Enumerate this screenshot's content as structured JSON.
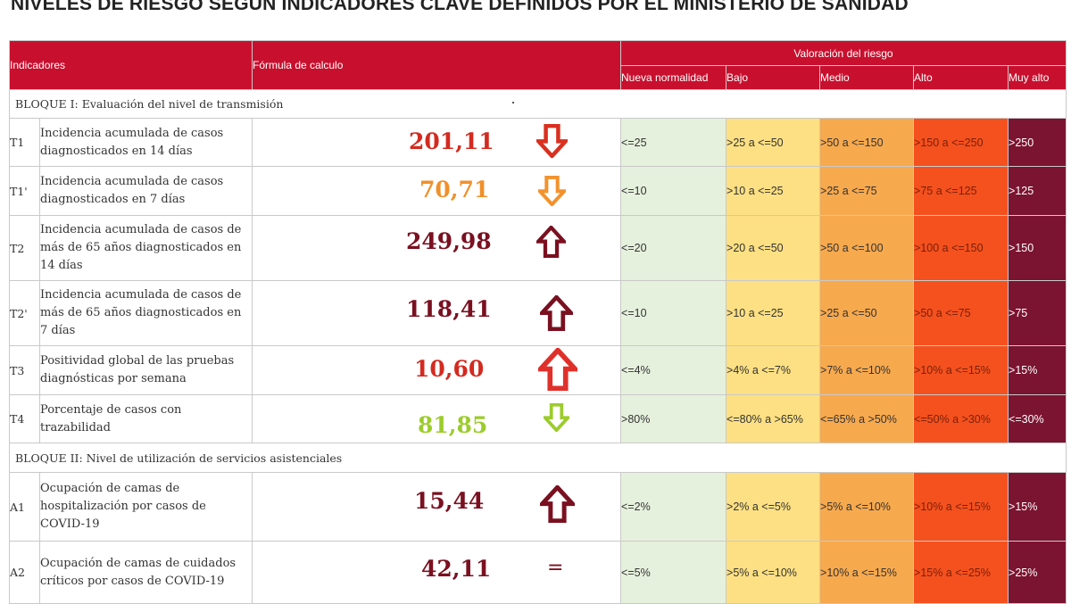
{
  "title": "NIVELES DE RIESGO SEGÚN INDICADORES CLAVE DEFINIDOS POR EL MINISTERIO DE SANIDAD",
  "header": {
    "indicadores": "Indicadores",
    "formula": "Fórmula de calculo",
    "valoracion": "Valoración del riesgo",
    "levels": [
      "Nueva normalidad",
      "Bajo",
      "Medio",
      "Alto",
      "Muy alto"
    ]
  },
  "colors": {
    "header_red": "#c8102e",
    "nueva_normalidad": "#e6f1dd",
    "bajo": "#fde083",
    "medio": "#f7a94e",
    "alto": "#f4511e",
    "muy_alto": "#7b1430"
  },
  "blocks": [
    {
      "label": "BLOQUE I: Evaluación del nivel de transmisión",
      "rows": [
        {
          "code": "T1",
          "description": "Incidencia acumulada de casos diagnosticados en 14 días",
          "value": "201,11",
          "value_color": "#d42a1f",
          "trend_icon": "arrow-down-icon",
          "trend_color": "#d9301f",
          "ranges": [
            "<=25",
            ">25 a <=50",
            ">50 a <=150",
            ">150 a <=250",
            ">250"
          ]
        },
        {
          "code": "T1'",
          "description": "Incidencia acumulada de casos diagnosticados en 7 días",
          "value": "70,71",
          "value_color": "#f0902a",
          "trend_icon": "arrow-down-icon",
          "trend_color": "#f3922c",
          "ranges": [
            "<=10",
            ">10 a <=25",
            ">25 a <=75",
            ">75 a <=125",
            ">125"
          ]
        },
        {
          "code": "T2",
          "description": "Incidencia acumulada de casos de más de 65 años diagnosticados en 14 días",
          "value": "249,98",
          "value_color": "#7a1020",
          "trend_icon": "arrow-up-icon",
          "trend_color": "#7a1020",
          "ranges": [
            "<=20",
            ">20 a <=50",
            ">50 a <=100",
            ">100 a <=150",
            ">150"
          ]
        },
        {
          "code": "T2'",
          "description": "Incidencia acumulada de casos de más de 65 años diagnosticados en 7 días",
          "value": "118,41",
          "value_color": "#7a1020",
          "trend_icon": "arrow-up-icon",
          "trend_color": "#7a1020",
          "ranges": [
            "<=10",
            ">10 a <=25",
            ">25 a <=50",
            ">50 a <=75",
            ">75"
          ]
        },
        {
          "code": "T3",
          "description": "Positividad global de las pruebas diagnósticas por semana",
          "value": "10,60",
          "value_color": "#d42a1f",
          "trend_icon": "arrow-up-icon",
          "trend_color": "#e0302a",
          "ranges": [
            "<=4%",
            ">4% a <=7%",
            ">7% a <=10%",
            ">10% a <=15%",
            ">15%"
          ]
        },
        {
          "code": "T4",
          "description": "Porcentaje de casos con trazabilidad",
          "value": "81,85",
          "value_color": "#9ccc2c",
          "trend_icon": "arrow-down-icon",
          "trend_color": "#9ccc2c",
          "ranges": [
            ">80%",
            "<=80% a >65%",
            "<=65% a >50%",
            "<=50% a >30%",
            "<=30%"
          ]
        }
      ]
    },
    {
      "label": "BLOQUE II: Nivel de utilización de servicios asistenciales",
      "rows": [
        {
          "code": "A1",
          "description": "Ocupación de camas de hospitalización por casos de COVID-19",
          "value": "15,44",
          "value_color": "#7a1020",
          "trend_icon": "arrow-up-icon",
          "trend_color": "#7a1020",
          "ranges": [
            "<=2%",
            ">2% a <=5%",
            ">5% a <=10%",
            ">10% a <=15%",
            ">15%"
          ]
        },
        {
          "code": "A2",
          "description": "Ocupación de camas de cuidados críticos por casos de COVID-19",
          "value": "42,11",
          "value_color": "#7a1020",
          "trend_icon": "equals-icon",
          "trend_symbol": "=",
          "trend_color": "#7a1020",
          "ranges": [
            "<=5%",
            ">5% a <=10%",
            ">10% a <=15%",
            ">15% a <=25%",
            ">25%"
          ]
        }
      ]
    }
  ]
}
